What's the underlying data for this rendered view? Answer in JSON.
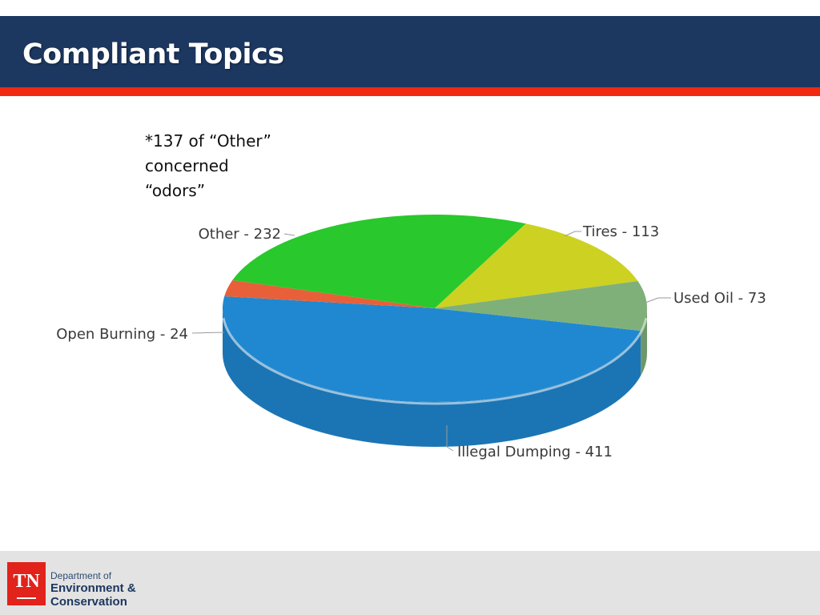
{
  "slide": {
    "title": "Compliant Topics",
    "note_lines": [
      "*137  of “Other”",
      "concerned",
      "“odors”"
    ]
  },
  "footer": {
    "logo_text": "TN",
    "dept_line1": "Department of",
    "dept_line2": "Environment &",
    "dept_line3": "Conservation"
  },
  "colors": {
    "title_bar": "#1c3760",
    "accent": "#f1290f",
    "illegal_dumping": "#1f88d1",
    "open_burning": "#e8603a",
    "other": "#29c82c",
    "tires": "#cdd122",
    "used_oil": "#7fb07a"
  },
  "chart_data": {
    "type": "pie",
    "style": "3d",
    "title": "",
    "slices": [
      {
        "label": "Illegal Dumping - 411",
        "category": "Illegal Dumping",
        "value": 411,
        "color": "#1f88d1"
      },
      {
        "label": "Open Burning - 24",
        "category": "Open Burning",
        "value": 24,
        "color": "#e8603a"
      },
      {
        "label": "Other - 232",
        "category": "Other",
        "value": 232,
        "color": "#29c82c"
      },
      {
        "label": "Tires - 113",
        "category": "Tires",
        "value": 113,
        "color": "#cdd122"
      },
      {
        "label": "Used Oil - 73",
        "category": "Used Oil",
        "value": 73,
        "color": "#7fb07a"
      }
    ]
  }
}
